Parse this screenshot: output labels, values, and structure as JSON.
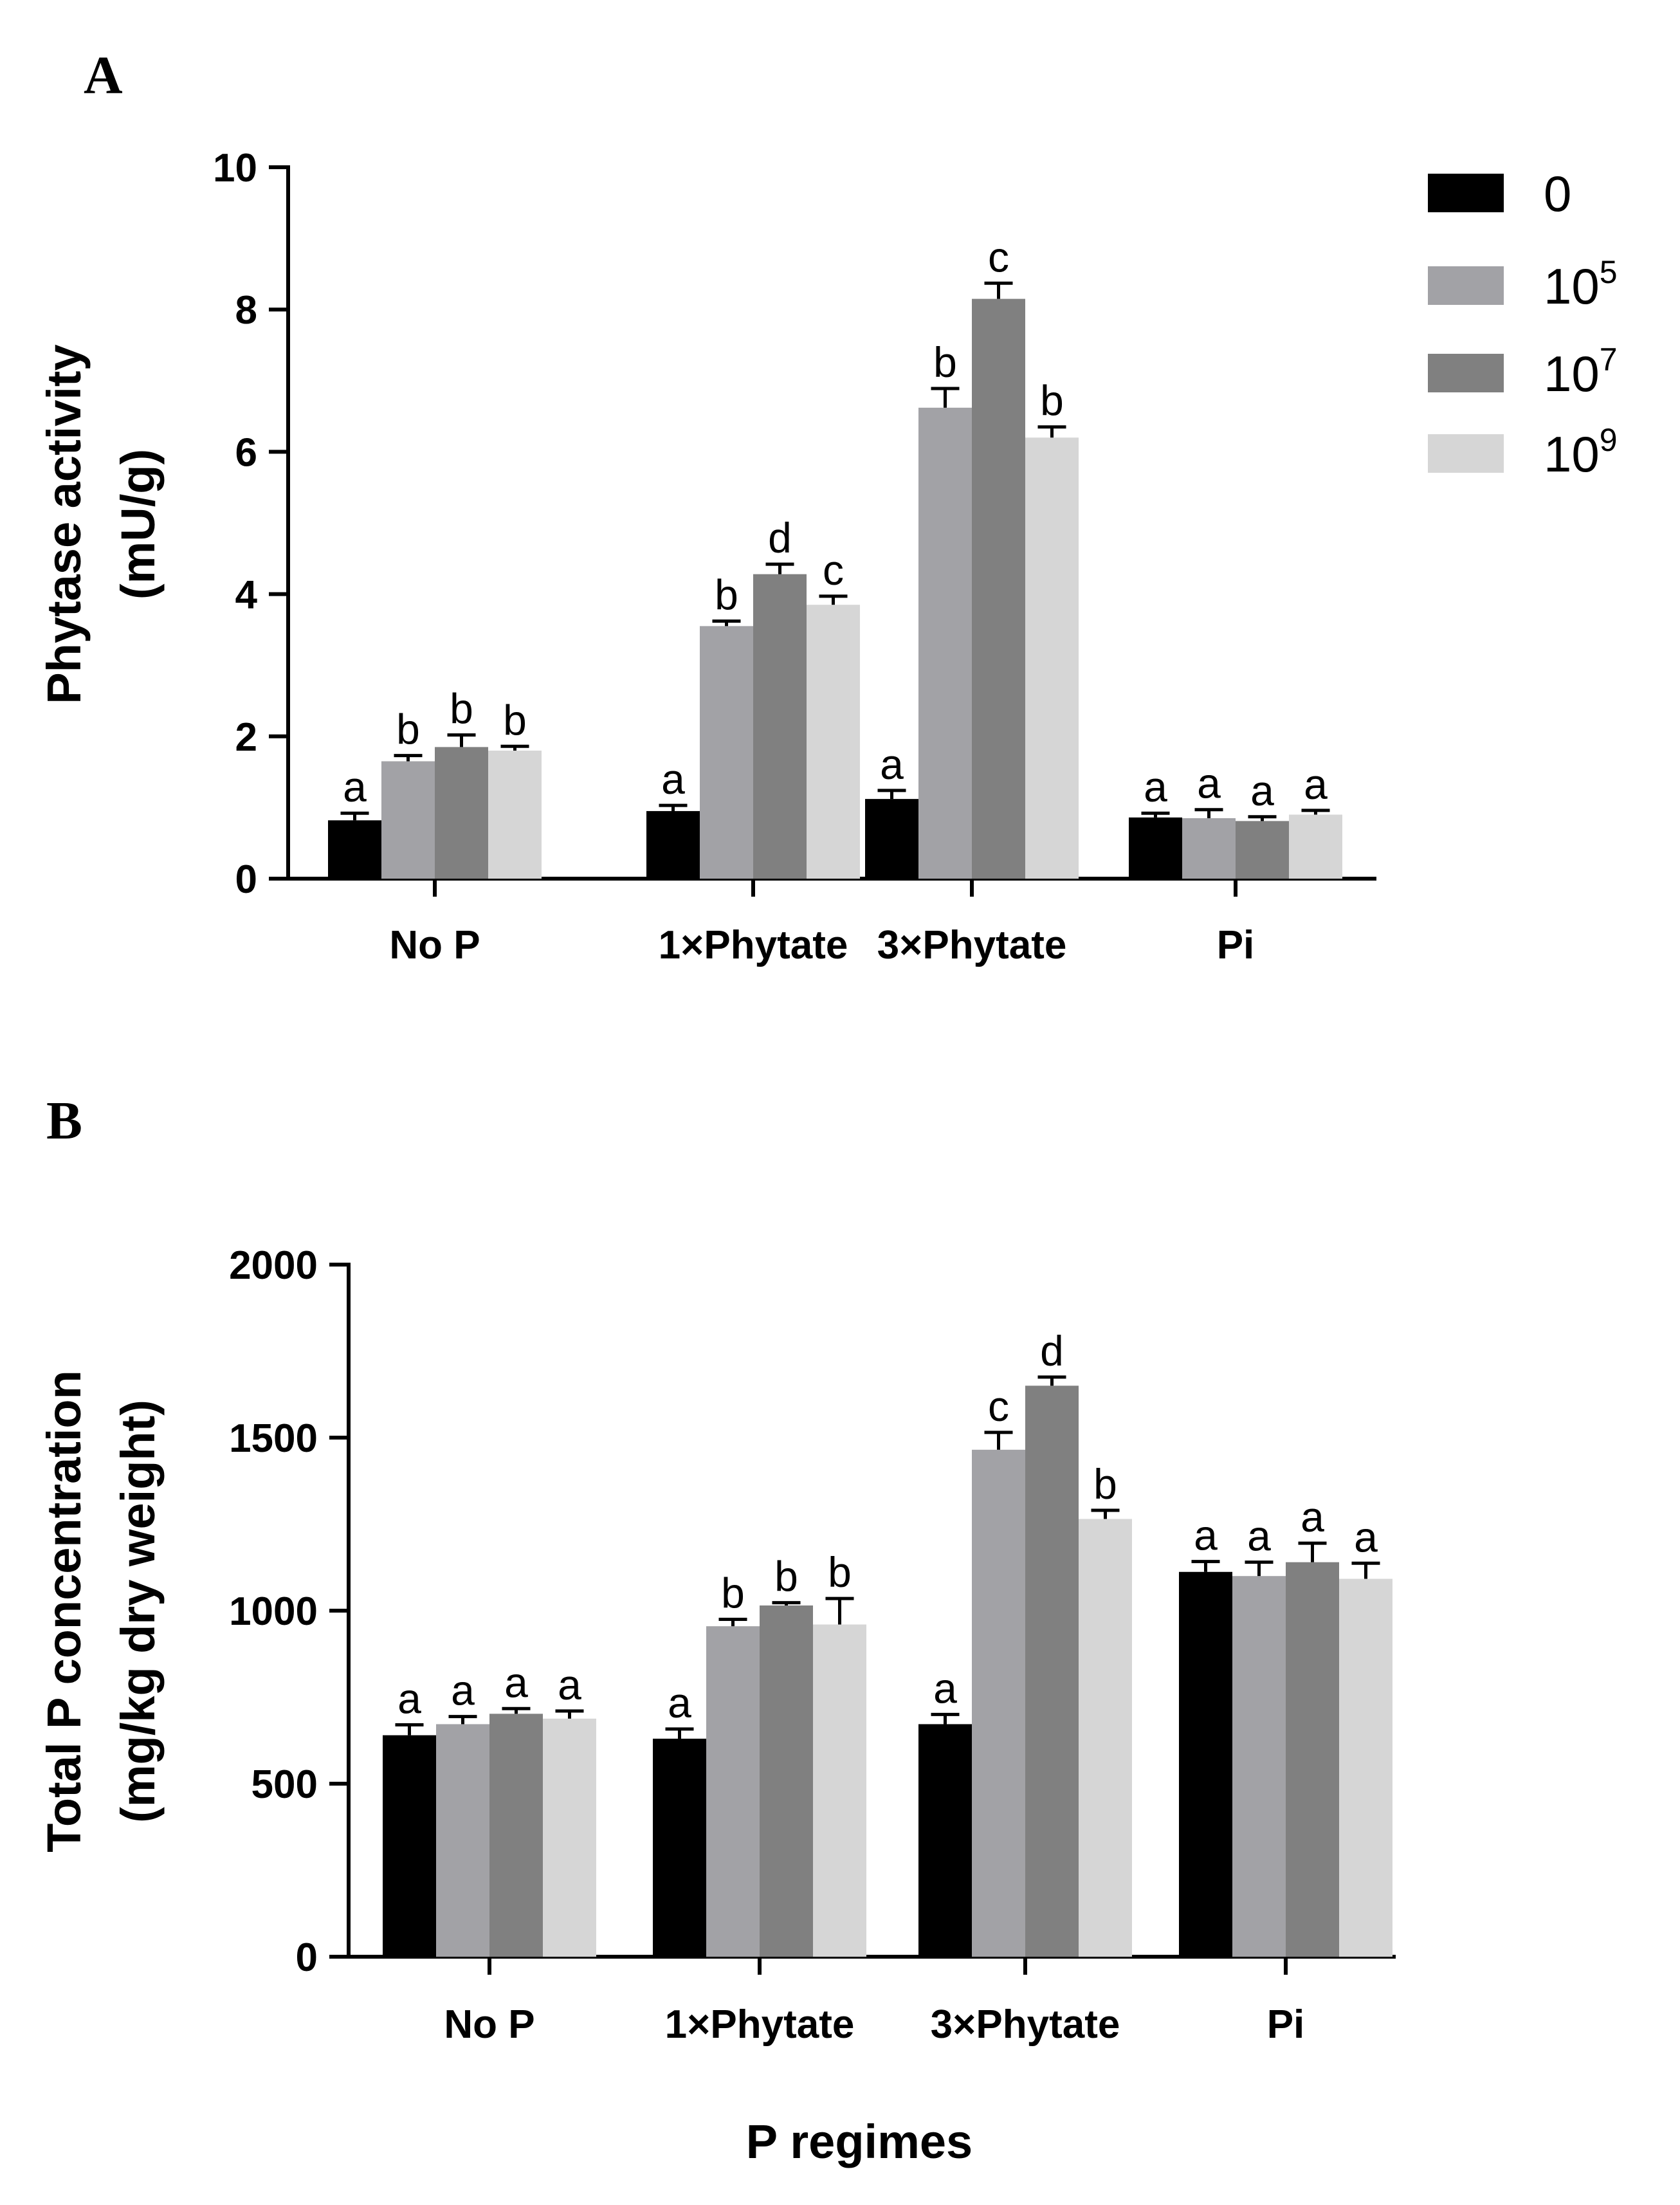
{
  "chart_data": [
    {
      "type": "bar",
      "panel": "A",
      "categories": [
        "No P",
        "1×Phytate",
        "3×Phytate",
        "Pi"
      ],
      "ylabel": "Phytase activity",
      "ylabel_line2": "(mU/g)",
      "xlabel": "",
      "ylim": [
        0,
        10
      ],
      "yticks": [
        "0",
        "2",
        "4",
        "6",
        "8",
        "10"
      ],
      "series": [
        {
          "name": "0",
          "color": "#000000",
          "values": [
            0.82,
            0.95,
            1.12,
            0.86
          ],
          "errors": [
            0.1,
            0.08,
            0.12,
            0.06
          ],
          "letters": [
            "a",
            "a",
            "a",
            "a"
          ]
        },
        {
          "name": "10^5",
          "color": "#a2a2a6",
          "values": [
            1.65,
            3.55,
            6.62,
            0.85
          ],
          "errors": [
            0.08,
            0.07,
            0.27,
            0.12
          ],
          "letters": [
            "b",
            "b",
            "b",
            "a"
          ]
        },
        {
          "name": "10^7",
          "color": "#808080",
          "values": [
            1.85,
            4.28,
            8.15,
            0.81
          ],
          "errors": [
            0.17,
            0.14,
            0.22,
            0.06
          ],
          "letters": [
            "b",
            "d",
            "c",
            "a"
          ]
        },
        {
          "name": "10^9",
          "color": "#d6d6d6",
          "values": [
            1.8,
            3.85,
            6.2,
            0.9
          ],
          "errors": [
            0.06,
            0.12,
            0.15,
            0.06
          ],
          "letters": [
            "b",
            "c",
            "b",
            "a"
          ]
        }
      ]
    },
    {
      "type": "bar",
      "panel": "B",
      "categories": [
        "No P",
        "1×Phytate",
        "3×Phytate",
        "Pi"
      ],
      "ylabel": "Total P concentration",
      "ylabel_line2": "(mg/kg dry weight)",
      "xlabel": "P regimes",
      "ylim": [
        0,
        2000
      ],
      "yticks": [
        "0",
        "500",
        "1000",
        "1500",
        "2000"
      ],
      "series": [
        {
          "name": "0",
          "color": "#000000",
          "values": [
            640,
            630,
            672,
            1112
          ],
          "errors": [
            30,
            28,
            28,
            30
          ],
          "letters": [
            "a",
            "a",
            "a",
            "a"
          ]
        },
        {
          "name": "10^5",
          "color": "#a2a2a6",
          "values": [
            672,
            955,
            1465,
            1100
          ],
          "errors": [
            22,
            20,
            50,
            40
          ],
          "letters": [
            "a",
            "b",
            "c",
            "a"
          ]
        },
        {
          "name": "10^7",
          "color": "#808080",
          "values": [
            702,
            1015,
            1650,
            1140
          ],
          "errors": [
            15,
            8,
            25,
            55
          ],
          "letters": [
            "a",
            "b",
            "d",
            "a"
          ]
        },
        {
          "name": "10^9",
          "color": "#d6d6d6",
          "values": [
            688,
            960,
            1265,
            1092
          ],
          "errors": [
            22,
            75,
            25,
            45
          ],
          "letters": [
            "a",
            "b",
            "b",
            "a"
          ]
        }
      ]
    }
  ],
  "legend": [
    {
      "base": "0",
      "exp": "",
      "color": "#000000"
    },
    {
      "base": "10",
      "exp": "5",
      "color": "#a2a2a6"
    },
    {
      "base": "10",
      "exp": "7",
      "color": "#808080"
    },
    {
      "base": "10",
      "exp": "9",
      "color": "#d6d6d6"
    }
  ]
}
